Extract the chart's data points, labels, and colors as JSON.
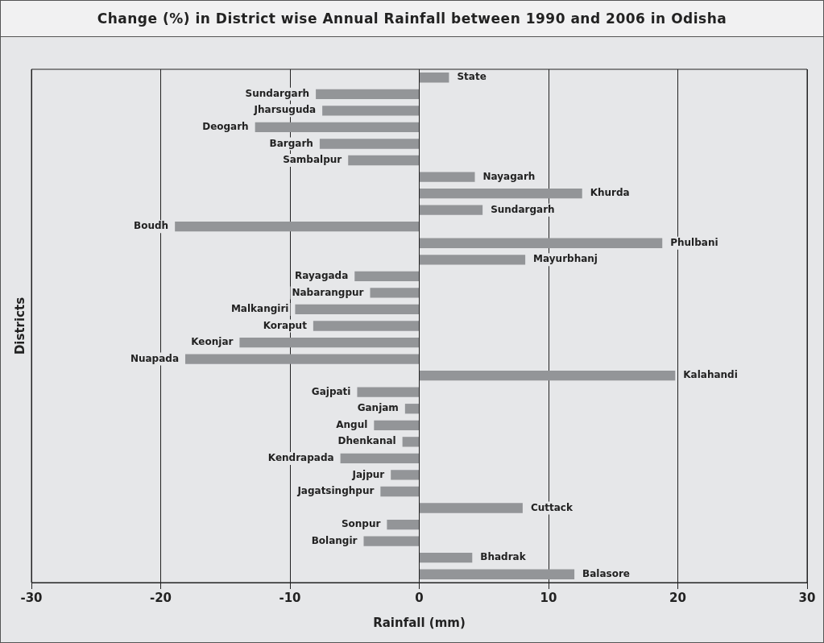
{
  "chart_data": {
    "type": "bar",
    "orientation": "horizontal",
    "title": "Change (%) in District wise Annual Rainfall between 1990 and 2006 in Odisha",
    "xlabel": "Rainfall (mm)",
    "ylabel": "Districts",
    "categories": [
      "State",
      "Sundargarh",
      "Jharsuguda",
      "Deogarh",
      "Bargarh",
      "Sambalpur",
      "Nayagarh",
      "Khurda",
      "Sundargarh",
      "Boudh",
      "Phulbani",
      "Mayurbhanj",
      "Rayagada",
      "Nabarangpur",
      "Malkangiri",
      "Koraput",
      "Keonjar",
      "Nuapada",
      "Kalahandi",
      "Gajpati",
      "Ganjam",
      "Angul",
      "Dhenkanal",
      "Kendrapada",
      "Jajpur",
      "Jagatsinghpur",
      "Cuttack",
      "Sonpur",
      "Bolangir",
      "Bhadrak",
      "Balasore"
    ],
    "values": [
      2.3,
      -8.0,
      -7.5,
      -12.7,
      -7.7,
      -5.5,
      4.3,
      12.6,
      4.9,
      -18.9,
      18.8,
      8.2,
      -5.0,
      -3.8,
      -9.6,
      -8.2,
      -13.9,
      -18.1,
      19.8,
      -4.8,
      -1.1,
      -3.5,
      -1.3,
      -6.1,
      -2.2,
      -3.0,
      8.0,
      -2.5,
      -4.3,
      4.1,
      12.0
    ],
    "color": "#939598",
    "xlim": [
      -30,
      30
    ],
    "xticks": [
      -30,
      -20,
      -10,
      0,
      10,
      20,
      30
    ],
    "grid": "x",
    "legend": false
  }
}
